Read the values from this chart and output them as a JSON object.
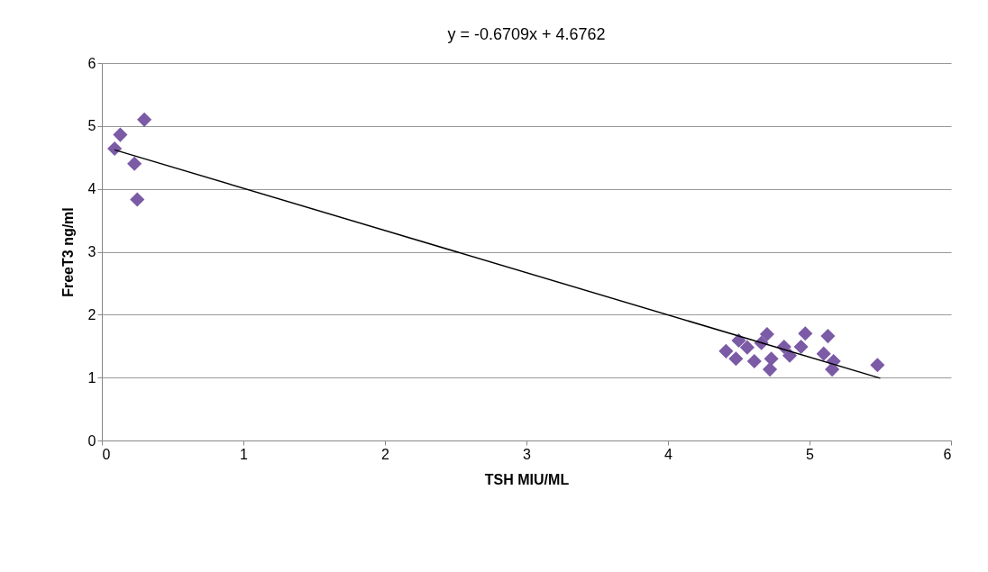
{
  "chart_data": {
    "type": "scatter",
    "xlabel": "TSH MIU/ML",
    "ylabel": "FreeT3 ng/ml",
    "annotations": [
      "y = -0.6709x + 4.6762"
    ],
    "xlim": [
      0,
      6
    ],
    "xticks": [
      0,
      1,
      2,
      3,
      4,
      5,
      6
    ],
    "ylim": [
      0,
      6
    ],
    "yticks": [
      0,
      1,
      2,
      3,
      4,
      5,
      6
    ],
    "grid": "y",
    "series": [
      {
        "marker": "diamond",
        "color": "#7b5aa6",
        "x": [
          0.3,
          0.13,
          0.09,
          0.23,
          0.25,
          4.41,
          4.5,
          4.48,
          4.56,
          4.61,
          4.7,
          4.66,
          4.72,
          4.73,
          4.82,
          4.86,
          4.94,
          4.97,
          5.13,
          5.1,
          5.17,
          5.16,
          5.48
        ],
        "values": [
          5.1,
          4.86,
          4.64,
          4.4,
          3.83,
          1.42,
          1.59,
          1.3,
          1.48,
          1.26,
          1.69,
          1.55,
          1.13,
          1.3,
          1.49,
          1.35,
          1.49,
          1.7,
          1.66,
          1.38,
          1.26,
          1.13,
          1.2
        ]
      },
      {
        "type": "line",
        "color": "#000000",
        "x": [
          0.09,
          5.5
        ],
        "values": [
          4.62,
          0.99
        ]
      }
    ]
  }
}
